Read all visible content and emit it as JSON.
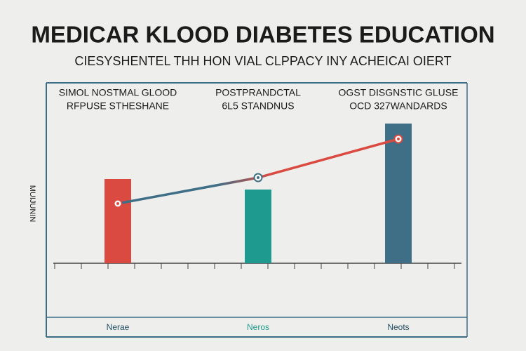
{
  "chart_data": {
    "type": "bar",
    "title": "MEDICAR KLOOD DIABETES EDUCATION",
    "subtitle": "CIESYSHENTEL THH HON VIAL CLPPACY INY ACHEICAI OIERT",
    "y_label": "MUIJUNIN",
    "categories": [
      "Nerae",
      "Neros",
      "Neots"
    ],
    "category_colors": [
      "#1f4f63",
      "#1f9a8c",
      "#1f4f63"
    ],
    "group_labels": [
      [
        "SIMOL  NOSTMAL GLOOD",
        "RFPUSE STHESHANE"
      ],
      [
        "POSTPRANDCTAL",
        "6L5 STANDNUS"
      ],
      [
        "OGST DISGNSTIC GLUSE",
        "OCD 327WANDARDS"
      ]
    ],
    "values": [
      120,
      105,
      199
    ],
    "colors": [
      "#da4a40",
      "#1e9a8e",
      "#3f6f87"
    ],
    "line": {
      "values": [
        85,
        122,
        177
      ],
      "colors": [
        "#3f6f87",
        "#da4a40"
      ]
    },
    "ylim": [
      0,
      225
    ]
  }
}
